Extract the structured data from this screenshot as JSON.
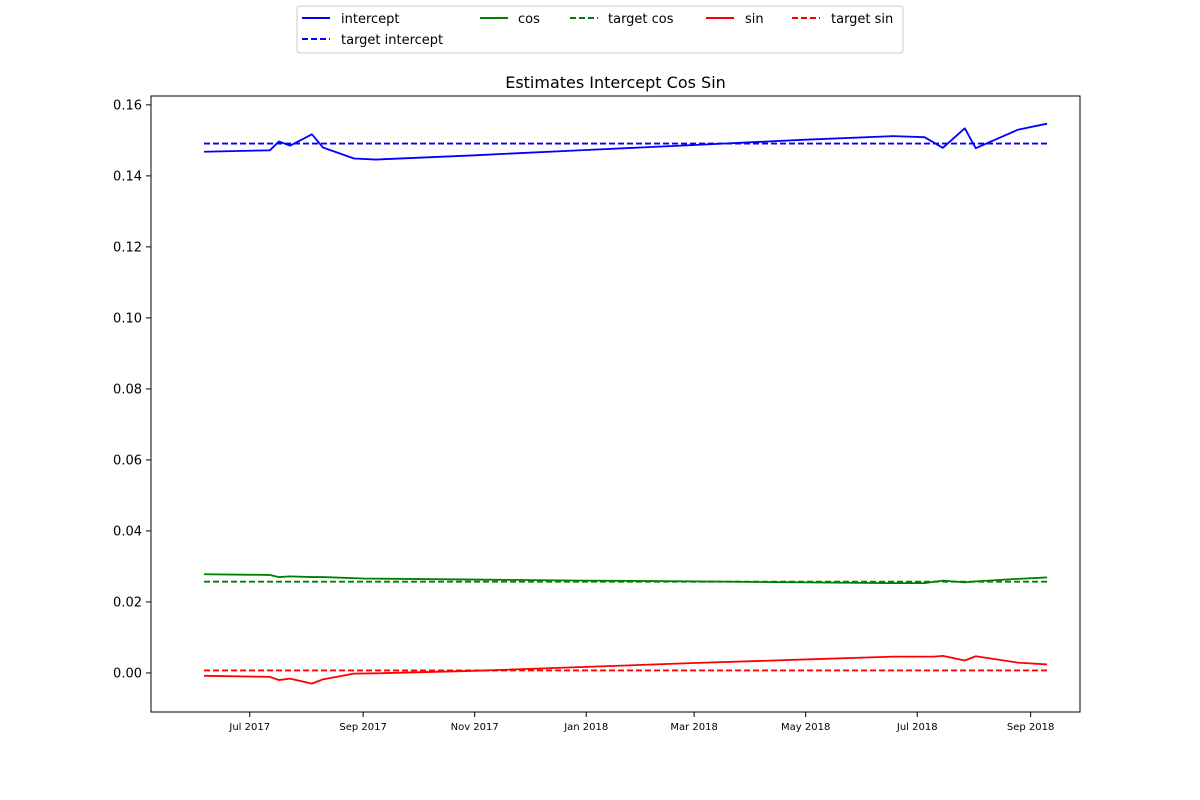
{
  "chart_data": {
    "type": "line",
    "title": "Estimates Intercept Cos Sin",
    "xlabel": "",
    "ylabel": "",
    "xlim": [
      "2017-05-08",
      "2018-09-28"
    ],
    "ylim": [
      -0.011,
      0.1625
    ],
    "x_ticks": [
      {
        "date": "2017-07-01",
        "label": "Jul 2017"
      },
      {
        "date": "2017-09-01",
        "label": "Sep 2017"
      },
      {
        "date": "2017-11-01",
        "label": "Nov 2017"
      },
      {
        "date": "2018-01-01",
        "label": "Jan 2018"
      },
      {
        "date": "2018-03-01",
        "label": "Mar 2018"
      },
      {
        "date": "2018-05-01",
        "label": "May 2018"
      },
      {
        "date": "2018-07-01",
        "label": "Jul 2018"
      },
      {
        "date": "2018-09-01",
        "label": "Sep 2018"
      }
    ],
    "y_ticks": [
      {
        "value": 0.0,
        "label": "0.00"
      },
      {
        "value": 0.02,
        "label": "0.02"
      },
      {
        "value": 0.04,
        "label": "0.04"
      },
      {
        "value": 0.06,
        "label": "0.06"
      },
      {
        "value": 0.08,
        "label": "0.08"
      },
      {
        "value": 0.1,
        "label": "0.10"
      },
      {
        "value": 0.12,
        "label": "0.12"
      },
      {
        "value": 0.14,
        "label": "0.14"
      },
      {
        "value": 0.16,
        "label": "0.16"
      }
    ],
    "grid": false,
    "legend_placement": "top-center",
    "series": [
      {
        "name": "intercept",
        "color": "#0000ff",
        "dash": "solid",
        "points": [
          [
            "2017-06-06",
            0.1468
          ],
          [
            "2017-07-12",
            0.1472
          ],
          [
            "2017-07-17",
            0.1497
          ],
          [
            "2017-07-23",
            0.1485
          ],
          [
            "2017-08-04",
            0.1517
          ],
          [
            "2017-08-10",
            0.148
          ],
          [
            "2017-08-27",
            0.1449
          ],
          [
            "2017-09-08",
            0.1446
          ],
          [
            "2017-11-01",
            0.1458
          ],
          [
            "2018-01-01",
            0.1473
          ],
          [
            "2018-03-01",
            0.1487
          ],
          [
            "2018-05-01",
            0.1502
          ],
          [
            "2018-06-18",
            0.1512
          ],
          [
            "2018-07-05",
            0.1509
          ],
          [
            "2018-07-15",
            0.1479
          ],
          [
            "2018-07-27",
            0.1534
          ],
          [
            "2018-08-02",
            0.1478
          ],
          [
            "2018-08-25",
            0.153
          ],
          [
            "2018-09-10",
            0.1547
          ]
        ]
      },
      {
        "name": "target intercept",
        "color": "#0000ff",
        "dash": "dashed",
        "points": [
          [
            "2017-06-06",
            0.1491
          ],
          [
            "2018-09-10",
            0.1491
          ]
        ]
      },
      {
        "name": "cos",
        "color": "#008000",
        "dash": "solid",
        "points": [
          [
            "2017-06-06",
            0.0278
          ],
          [
            "2017-07-12",
            0.0276
          ],
          [
            "2017-07-17",
            0.027
          ],
          [
            "2017-07-23",
            0.0272
          ],
          [
            "2017-08-04",
            0.027
          ],
          [
            "2017-08-10",
            0.027
          ],
          [
            "2017-09-01",
            0.0266
          ],
          [
            "2017-11-01",
            0.0263
          ],
          [
            "2018-01-01",
            0.026
          ],
          [
            "2018-03-01",
            0.0258
          ],
          [
            "2018-05-01",
            0.0255
          ],
          [
            "2018-06-18",
            0.0253
          ],
          [
            "2018-07-05",
            0.0253
          ],
          [
            "2018-07-15",
            0.026
          ],
          [
            "2018-07-27",
            0.0255
          ],
          [
            "2018-08-02",
            0.0258
          ],
          [
            "2018-08-25",
            0.0265
          ],
          [
            "2018-09-10",
            0.0269
          ]
        ]
      },
      {
        "name": "target cos",
        "color": "#008000",
        "dash": "dashed",
        "points": [
          [
            "2017-06-06",
            0.0257
          ],
          [
            "2018-09-10",
            0.0257
          ]
        ]
      },
      {
        "name": "sin",
        "color": "#ff0000",
        "dash": "solid",
        "points": [
          [
            "2017-06-06",
            -0.0008
          ],
          [
            "2017-07-12",
            -0.0011
          ],
          [
            "2017-07-17",
            -0.002
          ],
          [
            "2017-07-23",
            -0.0016
          ],
          [
            "2017-08-04",
            -0.003
          ],
          [
            "2017-08-10",
            -0.0018
          ],
          [
            "2017-08-27",
            -0.0002
          ],
          [
            "2017-09-08",
            -0.0001
          ],
          [
            "2017-11-01",
            0.0006
          ],
          [
            "2018-01-01",
            0.0017
          ],
          [
            "2018-03-01",
            0.0028
          ],
          [
            "2018-05-01",
            0.0038
          ],
          [
            "2018-06-18",
            0.0046
          ],
          [
            "2018-07-10",
            0.0046
          ],
          [
            "2018-07-15",
            0.0048
          ],
          [
            "2018-07-27",
            0.0035
          ],
          [
            "2018-08-02",
            0.0047
          ],
          [
            "2018-08-25",
            0.0029
          ],
          [
            "2018-09-10",
            0.0024
          ]
        ]
      },
      {
        "name": "target sin",
        "color": "#ff0000",
        "dash": "dashed",
        "points": [
          [
            "2017-06-06",
            0.0007
          ],
          [
            "2018-09-10",
            0.0007
          ]
        ]
      }
    ]
  }
}
